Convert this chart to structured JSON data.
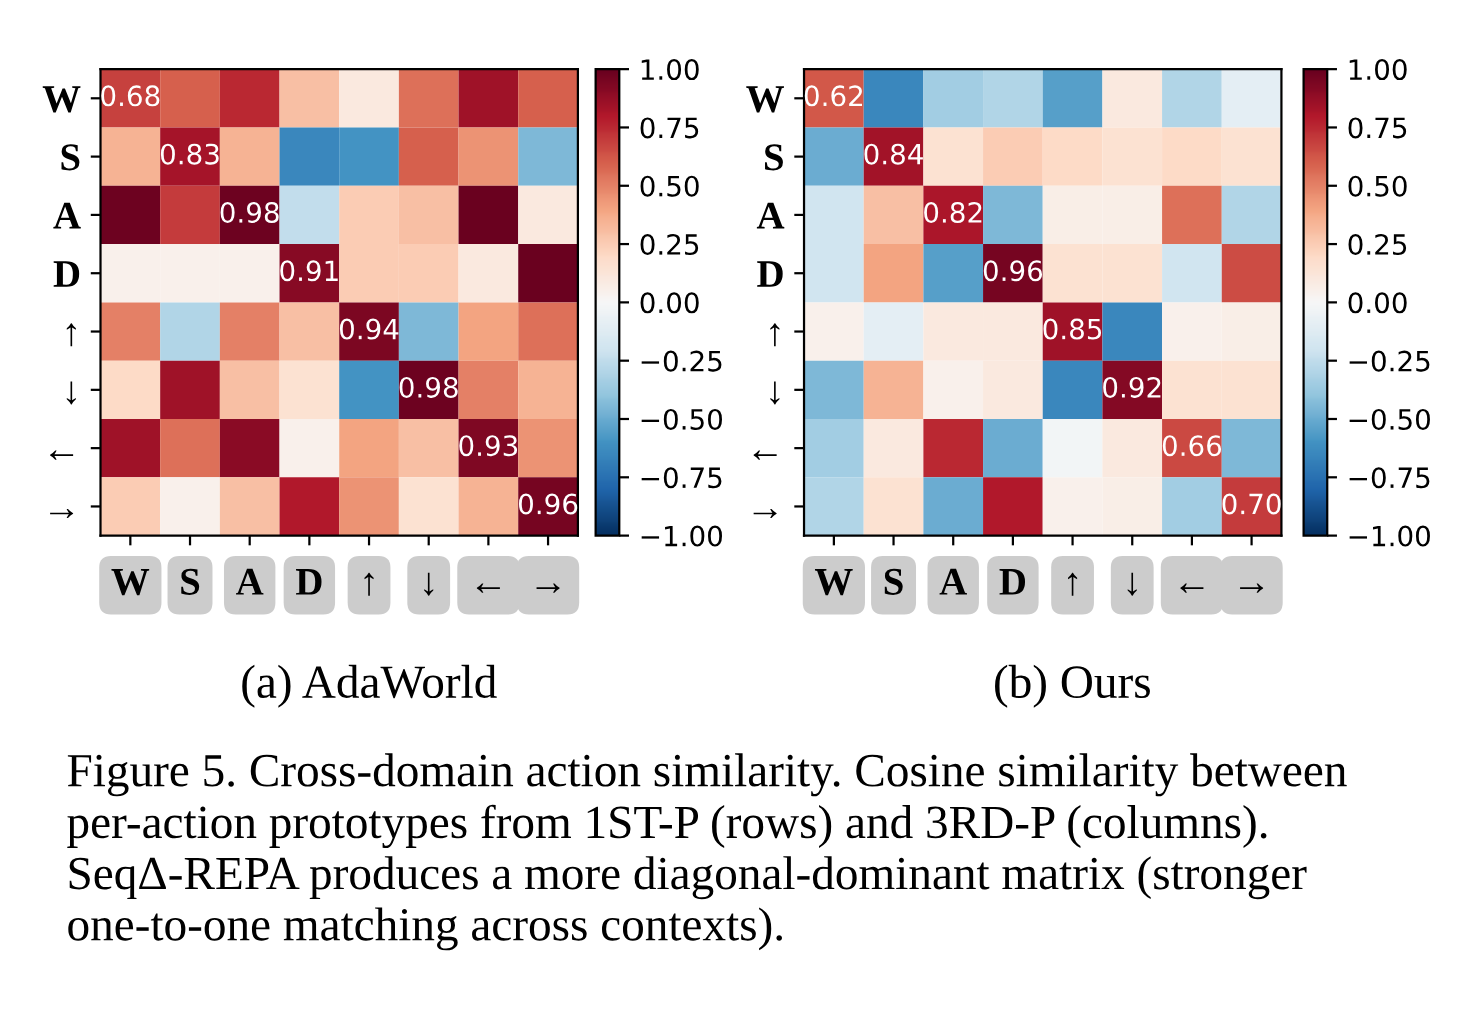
{
  "chart_data": [
    {
      "type": "heatmap",
      "subtitle": "(a) AdaWorld",
      "categories": [
        "W",
        "S",
        "A",
        "D",
        "↑",
        "↓",
        "←",
        "→"
      ],
      "y_categories": [
        "W",
        "S",
        "A",
        "D",
        "↑",
        "↓",
        "←",
        "→"
      ],
      "cells": [
        [
          0.68,
          0.6,
          0.75,
          0.3,
          0.1,
          0.55,
          0.85,
          0.6
        ],
        [
          0.35,
          0.83,
          0.35,
          -0.65,
          -0.6,
          0.6,
          0.45,
          -0.45
        ],
        [
          0.98,
          0.7,
          0.98,
          -0.25,
          0.25,
          0.3,
          0.99,
          0.1
        ],
        [
          0.05,
          0.05,
          0.05,
          0.91,
          0.25,
          0.25,
          0.1,
          0.99
        ],
        [
          0.5,
          -0.3,
          0.5,
          0.3,
          0.94,
          -0.45,
          0.4,
          0.55
        ],
        [
          0.2,
          0.85,
          0.3,
          0.15,
          -0.6,
          0.98,
          0.5,
          0.35
        ],
        [
          0.85,
          0.55,
          0.9,
          0.05,
          0.4,
          0.3,
          0.93,
          0.45
        ],
        [
          0.25,
          0.05,
          0.3,
          0.8,
          0.45,
          0.15,
          0.35,
          0.96
        ]
      ],
      "cell_labels": [
        [
          "0.68",
          null,
          null,
          null,
          null,
          null,
          null,
          null
        ],
        [
          null,
          "0.83",
          null,
          null,
          null,
          null,
          null,
          null
        ],
        [
          null,
          null,
          "0.98",
          null,
          null,
          null,
          null,
          null
        ],
        [
          null,
          null,
          null,
          "0.91",
          null,
          null,
          null,
          null
        ],
        [
          null,
          null,
          null,
          null,
          "0.94",
          null,
          null,
          null
        ],
        [
          null,
          null,
          null,
          null,
          null,
          "0.98",
          null,
          null
        ],
        [
          null,
          null,
          null,
          null,
          null,
          null,
          "0.93",
          null
        ],
        [
          null,
          null,
          null,
          null,
          null,
          null,
          null,
          "0.96"
        ]
      ],
      "clim": [
        -1,
        1
      ],
      "cticks": [
        {
          "value": -1,
          "label": "−1.00"
        },
        {
          "value": -0.75,
          "label": "−0.75"
        },
        {
          "value": -0.5,
          "label": "−0.50"
        },
        {
          "value": -0.25,
          "label": "−0.25"
        },
        {
          "value": 0,
          "label": "0.00"
        },
        {
          "value": 0.25,
          "label": "0.25"
        },
        {
          "value": 0.5,
          "label": "0.50"
        },
        {
          "value": 0.75,
          "label": "0.75"
        },
        {
          "value": 1,
          "label": "1.00"
        }
      ],
      "annotations": [
        "Figure 5. Cross-domain action similarity. Cosine similarity between per-action prototypes from 1ST-P (rows) and 3RD-P (columns). SeqΔ-REPA produces a more diagonal-dominant matrix (stronger one-to-one matching across contexts)."
      ]
    },
    {
      "type": "heatmap",
      "subtitle": "(b) Ours",
      "categories": [
        "W",
        "S",
        "A",
        "D",
        "↑",
        "↓",
        "←",
        "→"
      ],
      "y_categories": [
        "W",
        "S",
        "A",
        "D",
        "↑",
        "↓",
        "←",
        "→"
      ],
      "cells": [
        [
          0.62,
          -0.65,
          -0.35,
          -0.3,
          -0.55,
          0.1,
          -0.3,
          -0.1
        ],
        [
          -0.5,
          0.84,
          0.15,
          0.25,
          0.2,
          0.15,
          0.2,
          0.15
        ],
        [
          -0.2,
          0.3,
          0.82,
          -0.45,
          0.07,
          0.07,
          0.55,
          -0.3
        ],
        [
          -0.2,
          0.4,
          -0.55,
          0.96,
          0.15,
          0.15,
          -0.2,
          0.65
        ],
        [
          0.05,
          -0.1,
          0.1,
          0.1,
          0.85,
          -0.65,
          0.05,
          0.07
        ],
        [
          -0.45,
          0.35,
          0.05,
          0.1,
          -0.65,
          0.92,
          0.15,
          0.15
        ],
        [
          -0.35,
          0.1,
          0.75,
          -0.5,
          -0.03,
          0.1,
          0.66,
          -0.45
        ],
        [
          -0.3,
          0.15,
          -0.5,
          0.8,
          0.05,
          0.07,
          -0.35,
          0.7
        ]
      ],
      "cell_labels": [
        [
          "0.62",
          null,
          null,
          null,
          null,
          null,
          null,
          null
        ],
        [
          null,
          "0.84",
          null,
          null,
          null,
          null,
          null,
          null
        ],
        [
          null,
          null,
          "0.82",
          null,
          null,
          null,
          null,
          null
        ],
        [
          null,
          null,
          null,
          "0.96",
          null,
          null,
          null,
          null
        ],
        [
          null,
          null,
          null,
          null,
          "0.85",
          null,
          null,
          null
        ],
        [
          null,
          null,
          null,
          null,
          null,
          "0.92",
          null,
          null
        ],
        [
          null,
          null,
          null,
          null,
          null,
          null,
          "0.66",
          null
        ],
        [
          null,
          null,
          null,
          null,
          null,
          null,
          null,
          "0.70"
        ]
      ],
      "clim": [
        -1,
        1
      ],
      "cticks": [
        {
          "value": -1,
          "label": "−1.00"
        },
        {
          "value": -0.75,
          "label": "−0.75"
        },
        {
          "value": -0.5,
          "label": "−0.50"
        },
        {
          "value": -0.25,
          "label": "−0.25"
        },
        {
          "value": 0,
          "label": "0.00"
        },
        {
          "value": 0.25,
          "label": "0.25"
        },
        {
          "value": 0.5,
          "label": "0.50"
        },
        {
          "value": 0.75,
          "label": "0.75"
        },
        {
          "value": 1,
          "label": "1.00"
        }
      ]
    }
  ]
}
